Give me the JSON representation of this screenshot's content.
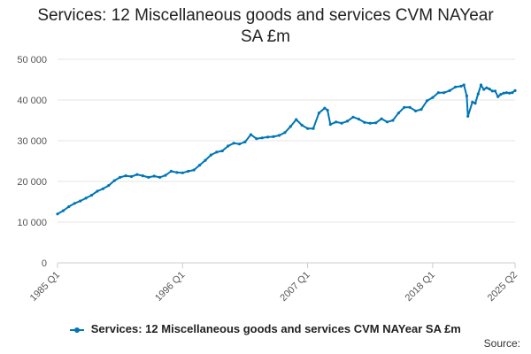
{
  "chart_data": {
    "type": "line",
    "title_lines": [
      "Services: 12 Miscellaneous goods and services CVM NAYear",
      "SA £m"
    ],
    "xlabel": "",
    "ylabel": "",
    "ylim": [
      0,
      50000
    ],
    "y_ticks": [
      0,
      10000,
      20000,
      30000,
      40000,
      50000
    ],
    "y_tick_labels": [
      "0",
      "10 000",
      "20 000",
      "30 000",
      "40 000",
      "50 000"
    ],
    "x_tick_labels": [
      "1985 Q1",
      "1996 Q1",
      "2007 Q1",
      "2018 Q1",
      "2025 Q2"
    ],
    "x_tick_years": [
      1985,
      1996,
      2007,
      2018,
      2025.25
    ],
    "x_range": [
      1985,
      2025.25
    ],
    "grid": true,
    "legend_position": "bottom",
    "series": [
      {
        "name": "Services: 12 Miscellaneous goods and services CVM NAYear SA £m",
        "color": "#0076b6",
        "points": [
          [
            1985.0,
            12000
          ],
          [
            1985.5,
            12800
          ],
          [
            1986.0,
            13800
          ],
          [
            1986.5,
            14600
          ],
          [
            1987.0,
            15200
          ],
          [
            1987.5,
            15900
          ],
          [
            1988.0,
            16600
          ],
          [
            1988.5,
            17600
          ],
          [
            1989.0,
            18200
          ],
          [
            1989.5,
            19000
          ],
          [
            1990.0,
            20200
          ],
          [
            1990.5,
            21000
          ],
          [
            1991.0,
            21400
          ],
          [
            1991.5,
            21200
          ],
          [
            1992.0,
            21700
          ],
          [
            1992.5,
            21400
          ],
          [
            1993.0,
            21000
          ],
          [
            1993.5,
            21300
          ],
          [
            1994.0,
            21000
          ],
          [
            1994.5,
            21500
          ],
          [
            1995.0,
            22500
          ],
          [
            1995.5,
            22200
          ],
          [
            1996.0,
            22100
          ],
          [
            1996.5,
            22500
          ],
          [
            1997.0,
            22800
          ],
          [
            1997.5,
            24000
          ],
          [
            1998.0,
            25200
          ],
          [
            1998.5,
            26500
          ],
          [
            1999.0,
            27200
          ],
          [
            1999.5,
            27500
          ],
          [
            2000.0,
            28700
          ],
          [
            2000.5,
            29400
          ],
          [
            2001.0,
            29200
          ],
          [
            2001.5,
            29700
          ],
          [
            2002.0,
            31500
          ],
          [
            2002.5,
            30500
          ],
          [
            2003.0,
            30700
          ],
          [
            2003.5,
            30900
          ],
          [
            2004.0,
            31000
          ],
          [
            2004.5,
            31300
          ],
          [
            2005.0,
            32000
          ],
          [
            2005.5,
            33500
          ],
          [
            2006.0,
            35200
          ],
          [
            2006.5,
            33800
          ],
          [
            2007.0,
            33000
          ],
          [
            2007.5,
            33000
          ],
          [
            2008.0,
            36800
          ],
          [
            2008.5,
            38000
          ],
          [
            2008.75,
            37500
          ],
          [
            2009.0,
            34000
          ],
          [
            2009.5,
            34600
          ],
          [
            2010.0,
            34300
          ],
          [
            2010.5,
            34800
          ],
          [
            2011.0,
            35800
          ],
          [
            2011.5,
            35300
          ],
          [
            2012.0,
            34500
          ],
          [
            2012.5,
            34300
          ],
          [
            2013.0,
            34400
          ],
          [
            2013.5,
            35400
          ],
          [
            2014.0,
            34600
          ],
          [
            2014.5,
            35000
          ],
          [
            2015.0,
            36800
          ],
          [
            2015.5,
            38200
          ],
          [
            2016.0,
            38200
          ],
          [
            2016.5,
            37300
          ],
          [
            2017.0,
            37700
          ],
          [
            2017.5,
            39800
          ],
          [
            2018.0,
            40600
          ],
          [
            2018.5,
            41800
          ],
          [
            2019.0,
            41800
          ],
          [
            2019.5,
            42300
          ],
          [
            2020.0,
            43200
          ],
          [
            2020.5,
            43400
          ],
          [
            2020.75,
            43700
          ],
          [
            2021.0,
            41000
          ],
          [
            2021.1,
            36000
          ],
          [
            2021.5,
            39500
          ],
          [
            2021.75,
            39200
          ],
          [
            2022.0,
            41500
          ],
          [
            2022.25,
            43700
          ],
          [
            2022.5,
            42600
          ],
          [
            2022.75,
            43000
          ],
          [
            2023.0,
            42700
          ],
          [
            2023.25,
            42200
          ],
          [
            2023.5,
            42200
          ],
          [
            2023.75,
            40800
          ],
          [
            2024.0,
            41400
          ],
          [
            2024.25,
            41700
          ],
          [
            2024.5,
            41800
          ],
          [
            2024.75,
            41700
          ],
          [
            2025.0,
            41800
          ],
          [
            2025.25,
            42300
          ]
        ]
      }
    ],
    "source_label": "Source:"
  }
}
